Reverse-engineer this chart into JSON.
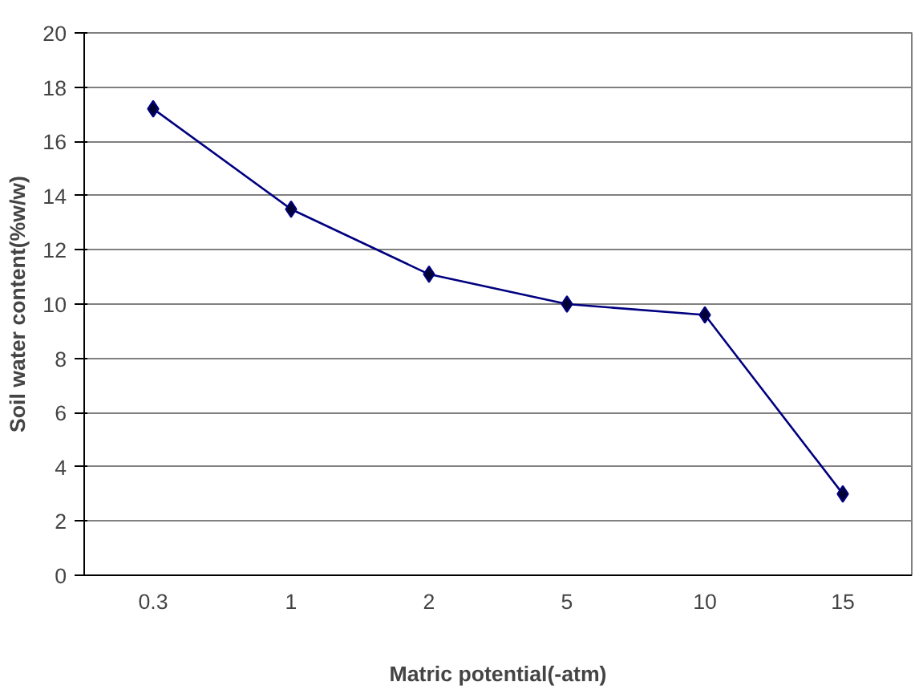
{
  "chart_data": {
    "type": "line",
    "xlabel": "Matric potential(-atm)",
    "ylabel": "Soil water content(%w/w)",
    "categories": [
      "0.3",
      "1",
      "2",
      "5",
      "10",
      "15"
    ],
    "series": [
      {
        "color": "#000080",
        "values": [
          17.2,
          13.5,
          11.1,
          10.0,
          9.6,
          3.0
        ]
      }
    ],
    "ylim": [
      0,
      20
    ],
    "yticks": [
      0,
      2,
      4,
      6,
      8,
      10,
      12,
      14,
      16,
      18,
      20
    ],
    "grid": "y",
    "marker": "diamond",
    "line_style": "solid"
  }
}
